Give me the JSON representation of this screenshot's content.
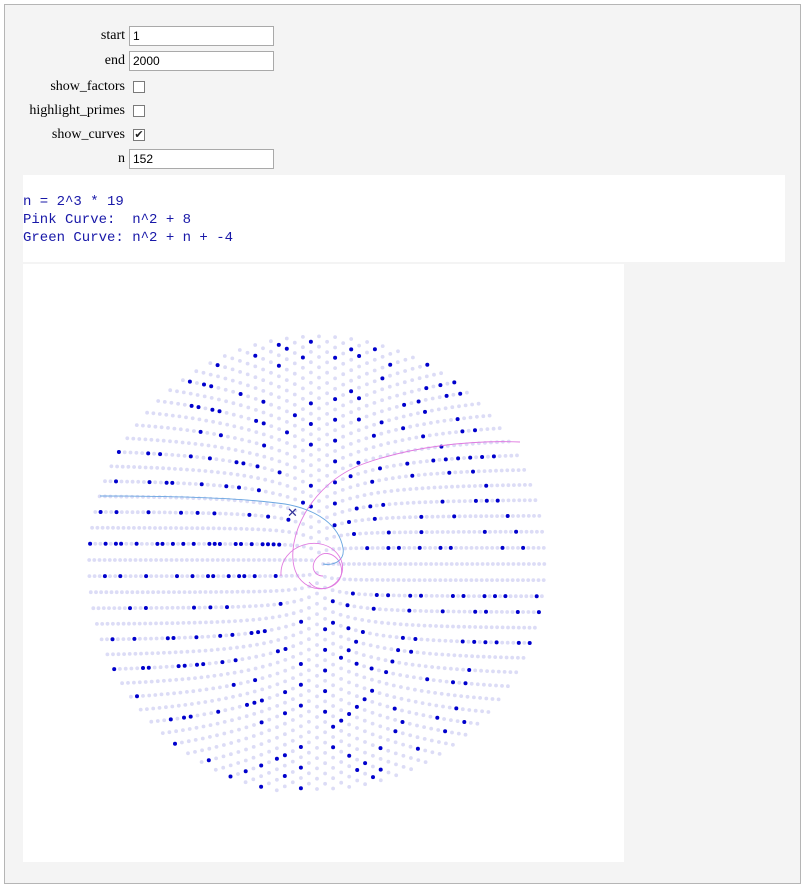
{
  "controls": {
    "start": {
      "label": "start",
      "value": "1"
    },
    "end": {
      "label": "end",
      "value": "2000"
    },
    "show_factors": {
      "label": "show_factors",
      "checked": false
    },
    "highlight_primes": {
      "label": "highlight_primes",
      "checked": false
    },
    "show_curves": {
      "label": "show_curves",
      "checked": true
    },
    "n": {
      "label": "n",
      "value": "152"
    }
  },
  "output": {
    "line1": "n = 2^3 * 19",
    "line2": "Pink Curve:  n^2 + 8",
    "line3": "Green Curve: n^2 + n + -4"
  },
  "plot": {
    "colors": {
      "background_dots": "#dcdcf6",
      "highlight_dots": "#0000cc",
      "pink_curve": "#e07ae0",
      "green_curve": "#6aa6e0",
      "marker": "#333399"
    },
    "marker_icon": "x-marker-icon"
  }
}
